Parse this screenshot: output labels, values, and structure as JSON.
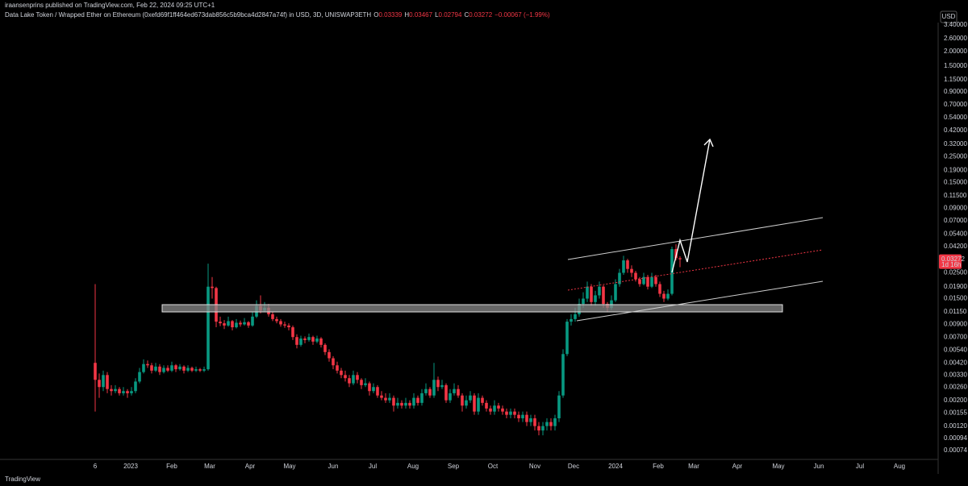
{
  "header": {
    "publisher": "iraansenprins published on TradingView.com, Feb 22, 2024 09:25 UTC+1",
    "footer": "TradingView"
  },
  "chart_data": {
    "type": "candlestick",
    "symbol": "Data Lake Token / Wrapped Ether on Ethereum (0xefd69f1ff464ed673dab856c5b9bca4d2847a74f) in USD, 3D, UNISWAP3ETH",
    "ohlc_letters": [
      "O",
      "H",
      "L",
      "C"
    ],
    "change": "−0.00067 (−1.99%)",
    "currency": "USD",
    "countdown": "1d 16h",
    "up_color": "#089981",
    "down_color": "#f23645",
    "log_scale": true,
    "ylim": [
      0.00062,
      3.56
    ],
    "yticks": [
      {
        "value": 3.4,
        "label": "3.40000"
      },
      {
        "value": 2.6,
        "label": "2.60000"
      },
      {
        "value": 2,
        "label": "2.00000"
      },
      {
        "value": 1.5,
        "label": "1.50000"
      },
      {
        "value": 1.15,
        "label": "1.15000"
      },
      {
        "value": 0.9,
        "label": "0.90000"
      },
      {
        "value": 0.7,
        "label": "0.70000"
      },
      {
        "value": 0.54,
        "label": "0.54000"
      },
      {
        "value": 0.42,
        "label": "0.42000"
      },
      {
        "value": 0.32,
        "label": "0.32000"
      },
      {
        "value": 0.25,
        "label": "0.25000"
      },
      {
        "value": 0.19,
        "label": "0.19000"
      },
      {
        "value": 0.15,
        "label": "0.15000"
      },
      {
        "value": 0.115,
        "label": "0.11500"
      },
      {
        "value": 0.09,
        "label": "0.09000"
      },
      {
        "value": 0.07,
        "label": "0.07000"
      },
      {
        "value": 0.054,
        "label": "0.05400"
      },
      {
        "value": 0.042,
        "label": "0.04200"
      },
      {
        "value": 0.025,
        "label": "0.02500"
      },
      {
        "value": 0.019,
        "label": "0.01900"
      },
      {
        "value": 0.015,
        "label": "0.01500"
      },
      {
        "value": 0.0115,
        "label": "0.01150"
      },
      {
        "value": 0.009,
        "label": "0.00900"
      },
      {
        "value": 0.007,
        "label": "0.00700"
      },
      {
        "value": 0.0054,
        "label": "0.00540"
      },
      {
        "value": 0.0042,
        "label": "0.00420"
      },
      {
        "value": 0.0033,
        "label": "0.00330"
      },
      {
        "value": 0.0026,
        "label": "0.00260"
      },
      {
        "value": 0.002,
        "label": "0.00200"
      },
      {
        "value": 0.00155,
        "label": "0.00155"
      },
      {
        "value": 0.0012,
        "label": "0.00120"
      },
      {
        "value": 0.00094,
        "label": "0.00094"
      },
      {
        "value": 0.00074,
        "label": "0.00074"
      }
    ],
    "xlim": [
      -23.6,
      209
    ],
    "xticks": [
      {
        "value": 0,
        "label": "6"
      },
      {
        "value": 8.8,
        "label": "2023"
      },
      {
        "value": 19,
        "label": "Feb"
      },
      {
        "value": 28.4,
        "label": "Mar"
      },
      {
        "value": 38.4,
        "label": "Apr"
      },
      {
        "value": 48.2,
        "label": "May"
      },
      {
        "value": 59,
        "label": "Jun"
      },
      {
        "value": 68.8,
        "label": "Jul"
      },
      {
        "value": 78.8,
        "label": "Aug"
      },
      {
        "value": 88.8,
        "label": "Sep"
      },
      {
        "value": 98.6,
        "label": "Oct"
      },
      {
        "value": 109,
        "label": "Nov"
      },
      {
        "value": 118.6,
        "label": "Dec"
      },
      {
        "value": 129,
        "label": "2024"
      },
      {
        "value": 139.6,
        "label": "Feb"
      },
      {
        "value": 148.4,
        "label": "Mar"
      },
      {
        "value": 159.2,
        "label": "Apr"
      },
      {
        "value": 169.4,
        "label": "May"
      },
      {
        "value": 179.4,
        "label": "Jun"
      },
      {
        "value": 189.6,
        "label": "Jul"
      },
      {
        "value": 199.4,
        "label": "Aug"
      }
    ],
    "ohlc": [
      [
        0.0042,
        0.02,
        0.0016,
        0.003
      ],
      [
        0.003,
        0.0034,
        0.0021,
        0.0026
      ],
      [
        0.0026,
        0.0036,
        0.0024,
        0.0033
      ],
      [
        0.0033,
        0.0035,
        0.0023,
        0.0025
      ],
      [
        0.0025,
        0.0027,
        0.0022,
        0.0024
      ],
      [
        0.0024,
        0.0027,
        0.0023,
        0.0025
      ],
      [
        0.0025,
        0.0026,
        0.0022,
        0.0023
      ],
      [
        0.0023,
        0.0026,
        0.0022,
        0.0024
      ],
      [
        0.0024,
        0.0025,
        0.0021,
        0.0023
      ],
      [
        0.0023,
        0.0026,
        0.0022,
        0.0024
      ],
      [
        0.0024,
        0.0031,
        0.0023,
        0.0029
      ],
      [
        0.0029,
        0.0038,
        0.0028,
        0.0035
      ],
      [
        0.0035,
        0.0045,
        0.0034,
        0.0041
      ],
      [
        0.0041,
        0.0044,
        0.0038,
        0.004
      ],
      [
        0.004,
        0.0042,
        0.0034,
        0.0036
      ],
      [
        0.0036,
        0.0042,
        0.0035,
        0.0039
      ],
      [
        0.0039,
        0.0041,
        0.0033,
        0.0035
      ],
      [
        0.0035,
        0.004,
        0.0034,
        0.0038
      ],
      [
        0.0038,
        0.004,
        0.0035,
        0.0036
      ],
      [
        0.0036,
        0.0043,
        0.0035,
        0.004
      ],
      [
        0.004,
        0.0041,
        0.0035,
        0.0037
      ],
      [
        0.0037,
        0.0041,
        0.0036,
        0.0039
      ],
      [
        0.0039,
        0.004,
        0.0034,
        0.0036
      ],
      [
        0.0036,
        0.004,
        0.0035,
        0.0038
      ],
      [
        0.0038,
        0.0039,
        0.0035,
        0.0036
      ],
      [
        0.0036,
        0.0039,
        0.0035,
        0.0037
      ],
      [
        0.0037,
        0.0038,
        0.0035,
        0.0036
      ],
      [
        0.0036,
        0.0039,
        0.0035,
        0.0037
      ],
      [
        0.0037,
        0.03,
        0.0036,
        0.019
      ],
      [
        0.019,
        0.023,
        0.015,
        0.0185
      ],
      [
        0.0185,
        0.019,
        0.0085,
        0.0095
      ],
      [
        0.0095,
        0.0105,
        0.0087,
        0.0092
      ],
      [
        0.0092,
        0.0098,
        0.0082,
        0.0088
      ],
      [
        0.0088,
        0.0105,
        0.0086,
        0.0096
      ],
      [
        0.0096,
        0.0098,
        0.008,
        0.0085
      ],
      [
        0.0085,
        0.01,
        0.0083,
        0.0093
      ],
      [
        0.0093,
        0.0097,
        0.0086,
        0.009
      ],
      [
        0.009,
        0.0102,
        0.0088,
        0.0094
      ],
      [
        0.0094,
        0.0096,
        0.0084,
        0.0088
      ],
      [
        0.0088,
        0.0115,
        0.0086,
        0.0105
      ],
      [
        0.0105,
        0.0145,
        0.0102,
        0.013
      ],
      [
        0.013,
        0.016,
        0.0112,
        0.0118
      ],
      [
        0.0118,
        0.014,
        0.0115,
        0.0125
      ],
      [
        0.0125,
        0.0135,
        0.0105,
        0.011
      ],
      [
        0.011,
        0.0115,
        0.0096,
        0.01
      ],
      [
        0.01,
        0.0105,
        0.0092,
        0.0096
      ],
      [
        0.0096,
        0.01,
        0.0086,
        0.009
      ],
      [
        0.009,
        0.0095,
        0.0084,
        0.0088
      ],
      [
        0.0088,
        0.0092,
        0.008,
        0.0085
      ],
      [
        0.0085,
        0.0088,
        0.0066,
        0.007
      ],
      [
        0.007,
        0.0074,
        0.0056,
        0.006
      ],
      [
        0.006,
        0.0072,
        0.0058,
        0.0068
      ],
      [
        0.0068,
        0.0071,
        0.0062,
        0.0066
      ],
      [
        0.0066,
        0.0075,
        0.0064,
        0.007
      ],
      [
        0.007,
        0.0072,
        0.006,
        0.0064
      ],
      [
        0.0064,
        0.0072,
        0.0062,
        0.0068
      ],
      [
        0.0068,
        0.007,
        0.0057,
        0.006
      ],
      [
        0.006,
        0.0062,
        0.0049,
        0.0052
      ],
      [
        0.0052,
        0.0055,
        0.0043,
        0.0046
      ],
      [
        0.0046,
        0.0048,
        0.0037,
        0.004
      ],
      [
        0.004,
        0.0043,
        0.0034,
        0.0036
      ],
      [
        0.0036,
        0.0038,
        0.0031,
        0.0033
      ],
      [
        0.0033,
        0.0036,
        0.0029,
        0.0031
      ],
      [
        0.0031,
        0.0033,
        0.0026,
        0.0028
      ],
      [
        0.0028,
        0.0036,
        0.0027,
        0.0033
      ],
      [
        0.0033,
        0.0035,
        0.0028,
        0.003
      ],
      [
        0.003,
        0.0031,
        0.0025,
        0.0027
      ],
      [
        0.0027,
        0.0031,
        0.0026,
        0.0028
      ],
      [
        0.0028,
        0.0029,
        0.0022,
        0.0024
      ],
      [
        0.0024,
        0.0028,
        0.0023,
        0.0026
      ],
      [
        0.0026,
        0.0027,
        0.0021,
        0.0022
      ],
      [
        0.0022,
        0.0024,
        0.002,
        0.0021
      ],
      [
        0.0021,
        0.0023,
        0.0019,
        0.002
      ],
      [
        0.002,
        0.0023,
        0.0019,
        0.0021
      ],
      [
        0.0021,
        0.0022,
        0.0016,
        0.0018
      ],
      [
        0.0018,
        0.0021,
        0.0017,
        0.0019
      ],
      [
        0.0019,
        0.002,
        0.0017,
        0.0018
      ],
      [
        0.0018,
        0.0021,
        0.0017,
        0.0019
      ],
      [
        0.0019,
        0.002,
        0.0017,
        0.0018
      ],
      [
        0.0018,
        0.0023,
        0.0017,
        0.0021
      ],
      [
        0.0021,
        0.0022,
        0.0018,
        0.0019
      ],
      [
        0.0019,
        0.0025,
        0.0018,
        0.0023
      ],
      [
        0.0023,
        0.0028,
        0.0022,
        0.0025
      ],
      [
        0.0025,
        0.0026,
        0.0021,
        0.0022
      ],
      [
        0.0022,
        0.0042,
        0.0021,
        0.003
      ],
      [
        0.003,
        0.0032,
        0.0024,
        0.0026
      ],
      [
        0.0026,
        0.003,
        0.0025,
        0.0027
      ],
      [
        0.0027,
        0.0028,
        0.0019,
        0.002
      ],
      [
        0.002,
        0.0025,
        0.0019,
        0.0023
      ],
      [
        0.0023,
        0.0028,
        0.0022,
        0.0025
      ],
      [
        0.0025,
        0.0027,
        0.0021,
        0.0022
      ],
      [
        0.0022,
        0.0023,
        0.0016,
        0.0018
      ],
      [
        0.0018,
        0.0022,
        0.0017,
        0.002
      ],
      [
        0.002,
        0.0024,
        0.0019,
        0.0022
      ],
      [
        0.0022,
        0.0023,
        0.0015,
        0.0016
      ],
      [
        0.0016,
        0.0023,
        0.0015,
        0.0021
      ],
      [
        0.0021,
        0.0022,
        0.0018,
        0.0019
      ],
      [
        0.0019,
        0.002,
        0.0016,
        0.0017
      ],
      [
        0.0017,
        0.0018,
        0.0015,
        0.0016
      ],
      [
        0.0016,
        0.002,
        0.0015,
        0.0018
      ],
      [
        0.0018,
        0.0019,
        0.0016,
        0.0017
      ],
      [
        0.0017,
        0.0018,
        0.0015,
        0.0016
      ],
      [
        0.0016,
        0.0017,
        0.0014,
        0.0015
      ],
      [
        0.0015,
        0.0017,
        0.0014,
        0.0016
      ],
      [
        0.0016,
        0.0017,
        0.0014,
        0.0015
      ],
      [
        0.0015,
        0.0016,
        0.0013,
        0.0014
      ],
      [
        0.0014,
        0.0016,
        0.0013,
        0.0015
      ],
      [
        0.0015,
        0.0016,
        0.0012,
        0.0013
      ],
      [
        0.0013,
        0.0015,
        0.0012,
        0.0014
      ],
      [
        0.0014,
        0.0015,
        0.0011,
        0.0012
      ],
      [
        0.0012,
        0.0013,
        0.001,
        0.0011
      ],
      [
        0.0011,
        0.0013,
        0.001,
        0.0012
      ],
      [
        0.0012,
        0.0014,
        0.0011,
        0.0013
      ],
      [
        0.0013,
        0.0014,
        0.0011,
        0.0012
      ],
      [
        0.0012,
        0.0015,
        0.0011,
        0.0014
      ],
      [
        0.0014,
        0.0024,
        0.0013,
        0.0022
      ],
      [
        0.0022,
        0.0055,
        0.0021,
        0.005
      ],
      [
        0.005,
        0.01,
        0.0048,
        0.0095
      ],
      [
        0.0095,
        0.011,
        0.0088,
        0.01
      ],
      [
        0.01,
        0.0125,
        0.0095,
        0.011
      ],
      [
        0.011,
        0.015,
        0.0105,
        0.0135
      ],
      [
        0.0135,
        0.017,
        0.0125,
        0.015
      ],
      [
        0.015,
        0.021,
        0.014,
        0.019
      ],
      [
        0.019,
        0.02,
        0.013,
        0.014
      ],
      [
        0.014,
        0.0175,
        0.013,
        0.016
      ],
      [
        0.016,
        0.021,
        0.015,
        0.019
      ],
      [
        0.019,
        0.0195,
        0.0125,
        0.0135
      ],
      [
        0.0135,
        0.014,
        0.0115,
        0.0125
      ],
      [
        0.0125,
        0.016,
        0.012,
        0.0145
      ],
      [
        0.0145,
        0.022,
        0.014,
        0.02
      ],
      [
        0.02,
        0.027,
        0.019,
        0.025
      ],
      [
        0.025,
        0.035,
        0.024,
        0.032
      ],
      [
        0.032,
        0.033,
        0.025,
        0.027
      ],
      [
        0.027,
        0.029,
        0.023,
        0.025
      ],
      [
        0.025,
        0.026,
        0.021,
        0.022
      ],
      [
        0.022,
        0.023,
        0.019,
        0.02
      ],
      [
        0.02,
        0.025,
        0.0195,
        0.023
      ],
      [
        0.023,
        0.024,
        0.018,
        0.019
      ],
      [
        0.019,
        0.025,
        0.0185,
        0.023
      ],
      [
        0.023,
        0.024,
        0.019,
        0.02
      ],
      [
        0.02,
        0.021,
        0.0155,
        0.0165
      ],
      [
        0.0165,
        0.0175,
        0.014,
        0.015
      ],
      [
        0.015,
        0.018,
        0.0145,
        0.0165
      ],
      [
        0.0165,
        0.042,
        0.016,
        0.04
      ],
      [
        0.04,
        0.044,
        0.032,
        0.03339
      ],
      [
        0.03339,
        0.03467,
        0.02794,
        0.03272
      ]
    ]
  }
}
